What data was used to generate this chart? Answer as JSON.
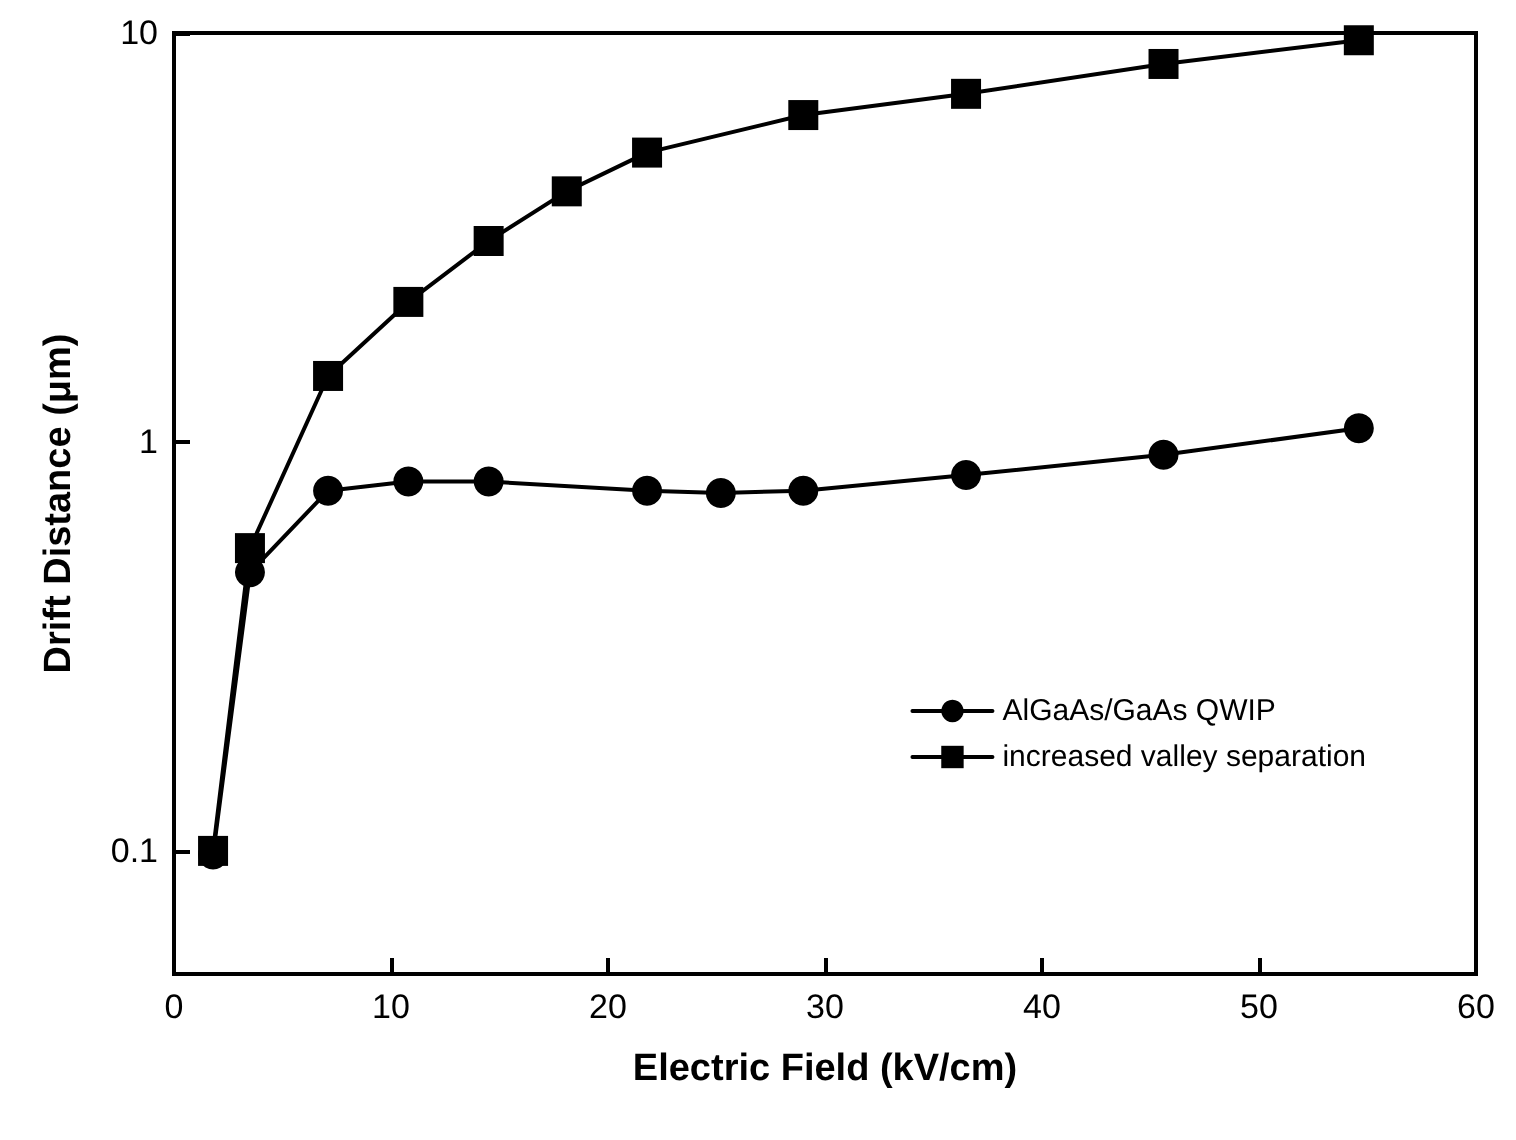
{
  "chart_data": {
    "type": "line",
    "xlabel": "Electric Field (kV/cm)",
    "ylabel": "Drift Distance (μm)",
    "log": "y",
    "xlim": [
      0,
      60
    ],
    "xticks": [
      0,
      10,
      20,
      30,
      40,
      50,
      60
    ],
    "ylim": [
      0.05,
      10
    ],
    "yticks": [
      0.1,
      1,
      10
    ],
    "grid": false,
    "legend": "right",
    "line_style": "solid",
    "series": [
      {
        "name": "AlGaAs/GaAs QWIP",
        "color": "#000000",
        "marker": "circle",
        "x": [
          1.8,
          3.5,
          7.1,
          10.8,
          14.5,
          21.8,
          25.2,
          29,
          36.5,
          45.6,
          54.6
        ],
        "values": [
          0.098,
          0.48,
          0.76,
          0.8,
          0.8,
          0.76,
          0.75,
          0.76,
          0.83,
          0.93,
          1.08
        ]
      },
      {
        "name": "increased valley separation",
        "color": "#000000",
        "marker": "square",
        "x": [
          1.8,
          3.5,
          7.1,
          10.8,
          14.5,
          18.1,
          21.8,
          29,
          36.5,
          45.6,
          54.6
        ],
        "values": [
          0.1,
          0.55,
          1.45,
          2.2,
          3.1,
          4.1,
          5.1,
          6.3,
          7.1,
          8.4,
          9.6
        ]
      }
    ]
  }
}
